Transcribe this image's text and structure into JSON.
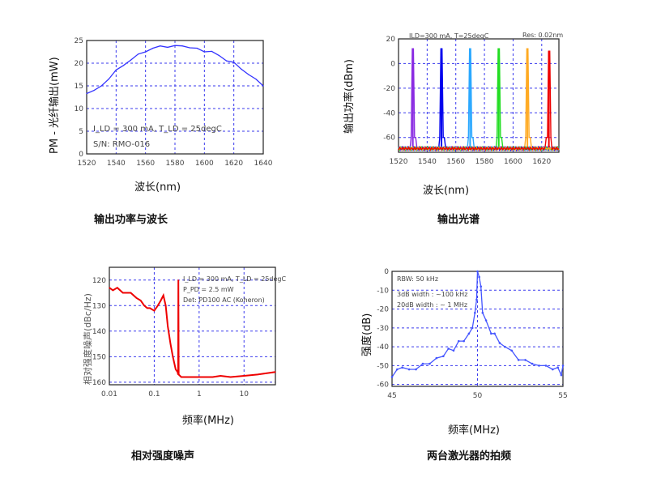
{
  "colors": {
    "grid": "#3a3aee",
    "axis": "#222222"
  },
  "chart_data": [
    {
      "type": "line",
      "caption": "输出功率与波长",
      "xlabel": "波长(nm)",
      "ylabel": "PM - 光纤输出(mW)",
      "xlim": [
        1520,
        1640
      ],
      "ylim": [
        0,
        25
      ],
      "xticks": [
        1520,
        1540,
        1560,
        1580,
        1600,
        1620,
        1640
      ],
      "yticks": [
        0,
        5,
        10,
        15,
        20,
        25
      ],
      "annotations": [
        "I_LD = 300 mA, T_LD = 25degC",
        "S/N: RMO-016"
      ],
      "series": [
        {
          "name": "power",
          "color": "#3333ff",
          "x": [
            1520,
            1525,
            1530,
            1535,
            1540,
            1545,
            1550,
            1555,
            1560,
            1565,
            1570,
            1575,
            1580,
            1585,
            1590,
            1595,
            1600,
            1605,
            1610,
            1615,
            1620,
            1625,
            1630,
            1635,
            1640
          ],
          "y": [
            13.3,
            14,
            15,
            16.5,
            18.5,
            19.5,
            20.7,
            22,
            22.5,
            23.3,
            23.8,
            23.5,
            23.9,
            23.8,
            23.4,
            23.3,
            22.5,
            22.6,
            21.7,
            20.5,
            20.2,
            18.7,
            17.5,
            16.5,
            15
          ]
        }
      ]
    },
    {
      "type": "line",
      "caption": "输出光谱",
      "xlabel": "波长(nm)",
      "ylabel": "输出功率(dBm)",
      "xlim": [
        1520,
        1632
      ],
      "ylim": [
        -72,
        20
      ],
      "xticks": [
        1520,
        1540,
        1560,
        1580,
        1600,
        1620
      ],
      "yticks": [
        -60,
        -40,
        -20,
        0,
        20
      ],
      "annotations": [
        "ILD=300 mA, T=25degC",
        "Res: 0.02nm"
      ],
      "series": [
        {
          "name": "1530nm",
          "color": "#8a2be2",
          "peak": 1530,
          "peak_dbm": 12
        },
        {
          "name": "1550nm",
          "color": "#0000ee",
          "peak": 1550,
          "peak_dbm": 12
        },
        {
          "name": "1570nm",
          "color": "#2aa8ff",
          "peak": 1570,
          "peak_dbm": 12
        },
        {
          "name": "1590nm",
          "color": "#22dd22",
          "peak": 1590,
          "peak_dbm": 12
        },
        {
          "name": "1610nm",
          "color": "#ffaa22",
          "peak": 1610,
          "peak_dbm": 12
        },
        {
          "name": "1625nm",
          "color": "#ee0000",
          "peak": 1625,
          "peak_dbm": 10
        }
      ],
      "noise_floor_dbm": -68
    },
    {
      "type": "line",
      "caption": "相对强度噪声",
      "xlabel": "频率(MHz)",
      "ylabel": "相对强度噪声(dBc/Hz)",
      "xscale": "log",
      "xlim": [
        0.01,
        50
      ],
      "ylim": [
        161,
        115
      ],
      "xticks": [
        0.01,
        0.1,
        1,
        10
      ],
      "xticklabels": [
        "0.01",
        "0.1",
        "1",
        "10"
      ],
      "yticks": [
        120,
        130,
        140,
        150,
        160
      ],
      "annotations": [
        "I_LD = 300 mA, T_LD = 25degC",
        "P_PD = 2.5 mW",
        "Det: PD100 AC (Koheron)"
      ],
      "series": [
        {
          "name": "RIN",
          "color": "#ee0000",
          "x": [
            0.01,
            0.012,
            0.015,
            0.02,
            0.025,
            0.03,
            0.04,
            0.05,
            0.06,
            0.07,
            0.08,
            0.1,
            0.12,
            0.14,
            0.16,
            0.18,
            0.2,
            0.23,
            0.26,
            0.3,
            0.33,
            0.34,
            0.345,
            0.35,
            0.4,
            0.5,
            0.7,
            1,
            2,
            3,
            5,
            10,
            20,
            50
          ],
          "y": [
            123,
            124,
            123,
            125,
            125,
            125,
            127,
            128,
            130,
            131,
            131,
            132,
            130,
            128,
            126,
            130,
            138,
            145,
            150,
            155,
            156,
            157,
            120,
            157,
            158,
            158,
            158,
            158,
            158,
            157.5,
            158,
            157.5,
            157,
            156
          ]
        }
      ]
    },
    {
      "type": "line",
      "caption": "两台激光器的拍频",
      "xlabel": "频率(MHz)",
      "ylabel": "强度(dB)",
      "xlim": [
        45,
        55
      ],
      "ylim": [
        -61,
        0
      ],
      "xticks": [
        45,
        50,
        55
      ],
      "yticks": [
        0,
        -10,
        -20,
        -30,
        -40,
        -50,
        -60
      ],
      "annotations": [
        "RBW: 50 kHz",
        "3dB width : ~100 kHz",
        "20dB width : ~ 1 MHz"
      ],
      "series": [
        {
          "name": "beat",
          "color": "#4455ff",
          "x": [
            45,
            45.3,
            45.6,
            46,
            46.4,
            46.8,
            47.2,
            47.6,
            48,
            48.3,
            48.6,
            48.9,
            49.2,
            49.5,
            49.7,
            49.85,
            49.95,
            50,
            50.1,
            50.2,
            50.3,
            50.5,
            50.8,
            51,
            51.3,
            51.6,
            52,
            52.4,
            52.8,
            53.2,
            53.6,
            54,
            54.4,
            54.7,
            54.9,
            55
          ],
          "y": [
            -56,
            -52,
            -51,
            -52,
            -52,
            -49,
            -49,
            -46,
            -45,
            -41,
            -42,
            -37,
            -37,
            -33,
            -30,
            -22,
            -15,
            0,
            -3,
            -8,
            -22,
            -26,
            -33,
            -33,
            -38,
            -40,
            -42,
            -47,
            -47,
            -49,
            -50,
            -50,
            -52,
            -51,
            -55,
            -50
          ]
        }
      ]
    }
  ]
}
